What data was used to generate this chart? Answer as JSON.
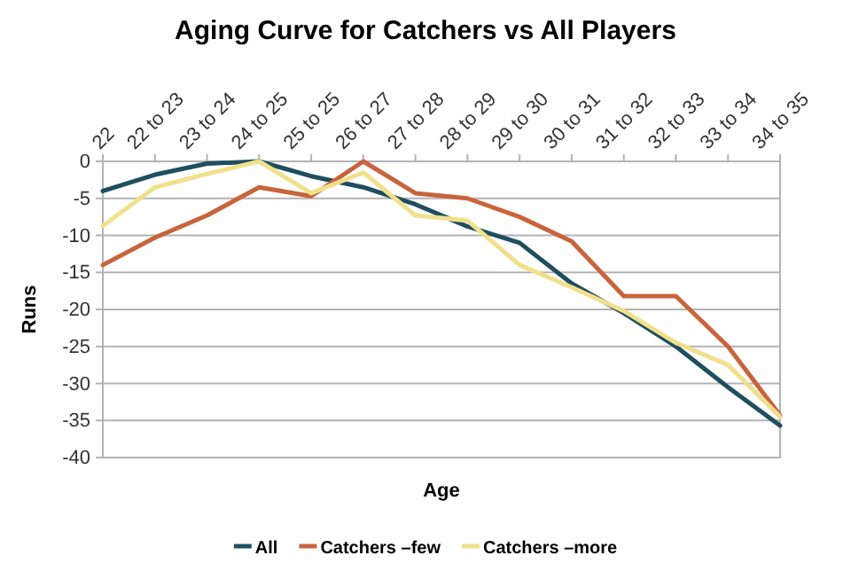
{
  "chart_data": {
    "type": "line",
    "title": "Aging Curve for Catchers vs All Players",
    "xlabel": "Age",
    "ylabel": "Runs",
    "categories": [
      "22",
      "22 to 23",
      "23 to 24",
      "24 to 25",
      "25 to 25",
      "26 to 27",
      "27 to 28",
      "28 to 29",
      "29 to 30",
      "30 to 31",
      "31 to 32",
      "32 to 33",
      "33 to 34",
      "34 to 35"
    ],
    "series": [
      {
        "name": "All",
        "color": "#1f4e5f",
        "values": [
          -4,
          -1.8,
          -0.3,
          0,
          -2,
          -3.5,
          -5.8,
          -8.8,
          -11,
          -16.5,
          -20.5,
          -25,
          -30.5,
          -35.7
        ]
      },
      {
        "name": "Catchers –few",
        "color": "#c8643c",
        "values": [
          -14,
          -10.3,
          -7.3,
          -3.5,
          -4.7,
          0,
          -4.3,
          -5,
          -7.5,
          -10.8,
          -18.2,
          -18.2,
          -25,
          -34.3
        ]
      },
      {
        "name": "Catchers –more",
        "color": "#f0e08c",
        "values": [
          -8.7,
          -3.5,
          -1.7,
          0,
          -4.3,
          -1.5,
          -7.3,
          -8,
          -14,
          -17,
          -20.2,
          -24.5,
          -27.5,
          -34.5
        ]
      }
    ],
    "ylim": [
      -40,
      0
    ],
    "yticks": [
      -40,
      -35,
      -30,
      -25,
      -20,
      -15,
      -10,
      -5,
      0
    ],
    "grid": "y",
    "legend": "bottom",
    "marker": "none",
    "line_style": "solid"
  }
}
